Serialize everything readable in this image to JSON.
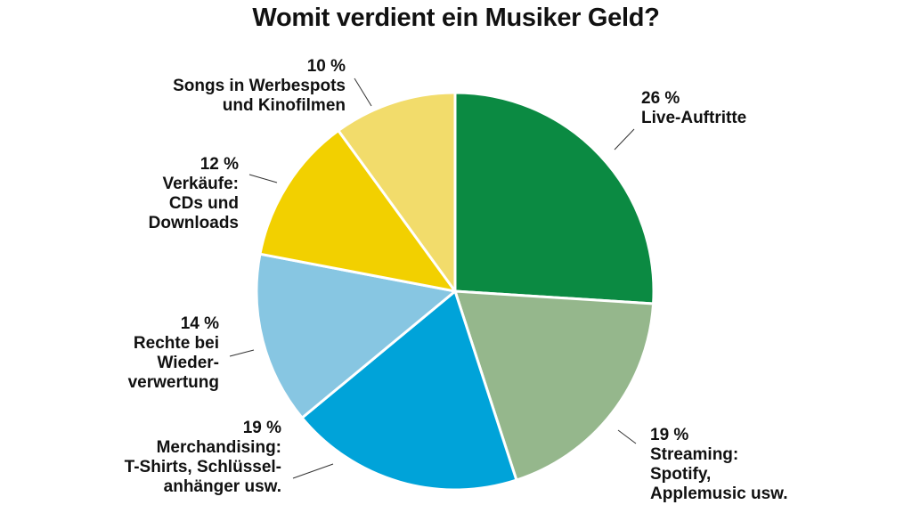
{
  "chart_data": {
    "type": "pie",
    "title": "Womit verdient ein Musiker Geld?",
    "slices": [
      {
        "label": "Live-Auftritte",
        "pct_label": "26 %",
        "value": 26,
        "color": "#0b8a42"
      },
      {
        "label": "Streaming: Spotify, Applemusic usw.",
        "pct_label": "19 %",
        "value": 19,
        "color": "#95b78c"
      },
      {
        "label": "Merchandising: T-Shirts, Schlüssel-anhänger usw.",
        "pct_label": "19 %",
        "value": 19,
        "color": "#00a3d9"
      },
      {
        "label": "Rechte bei Wieder-verwertung",
        "pct_label": "14 %",
        "value": 14,
        "color": "#87c6e2"
      },
      {
        "label": "Verkäufe: CDs und Downloads",
        "pct_label": "12 %",
        "value": 12,
        "color": "#f2d000"
      },
      {
        "label": "Songs in Werbespots und Kinofilmen",
        "pct_label": "10 %",
        "value": 10,
        "color": "#f2dc6b"
      }
    ]
  },
  "labels": {
    "live": {
      "pct": "26 %",
      "lines": [
        "Live-Auftritte"
      ]
    },
    "streaming": {
      "pct": "19 %",
      "lines": [
        "Streaming:",
        "Spotify,",
        "Applemusic usw."
      ]
    },
    "merch": {
      "pct": "19 %",
      "lines": [
        "Merchandising:",
        "T-Shirts, Schlüssel-",
        "anhänger usw."
      ]
    },
    "rechte": {
      "pct": "14 %",
      "lines": [
        "Rechte bei",
        "Wieder-",
        "verwertung"
      ]
    },
    "verkaeufe": {
      "pct": "12 %",
      "lines": [
        "Verkäufe:",
        "CDs und",
        "Downloads"
      ]
    },
    "songs": {
      "pct": "10 %",
      "lines": [
        "Songs in Werbespots",
        "und Kinofilmen"
      ]
    }
  }
}
